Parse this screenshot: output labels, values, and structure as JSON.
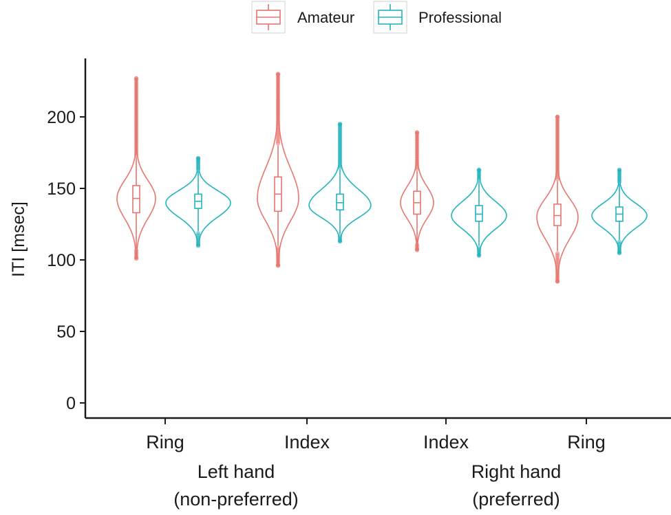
{
  "chart_data": {
    "type": "violin",
    "ylabel": "ITI [msec]",
    "ylim": [
      0,
      235
    ],
    "yticks": [
      0,
      50,
      100,
      150,
      200
    ],
    "categories": [
      "Ring",
      "Index",
      "Index",
      "Ring"
    ],
    "groups": [
      {
        "label_line1": "Left hand",
        "label_line2": "(non-preferred)",
        "categories": [
          0,
          1
        ]
      },
      {
        "label_line1": "Right hand",
        "label_line2": "(preferred)",
        "categories": [
          2,
          3
        ]
      }
    ],
    "legend": {
      "position": "top",
      "entries": [
        "Amateur",
        "Professional"
      ]
    },
    "series": [
      {
        "name": "Amateur",
        "color": "#E8756E",
        "values": [
          {
            "min": 101,
            "q1": 133,
            "median": 143,
            "q3": 152,
            "max": 227,
            "mode": 143,
            "whisker_lo": 108,
            "whisker_hi": 172
          },
          {
            "min": 96,
            "q1": 134,
            "median": 146,
            "q3": 158,
            "max": 230,
            "mode": 143,
            "whisker_lo": 110,
            "whisker_hi": 180
          },
          {
            "min": 107,
            "q1": 132,
            "median": 140,
            "q3": 148,
            "max": 189,
            "mode": 140,
            "whisker_lo": 112,
            "whisker_hi": 162
          },
          {
            "min": 85,
            "q1": 124,
            "median": 131,
            "q3": 139,
            "max": 200,
            "mode": 130,
            "whisker_lo": 106,
            "whisker_hi": 155
          }
        ]
      },
      {
        "name": "Professional",
        "color": "#22B4BE",
        "values": [
          {
            "min": 110,
            "q1": 136,
            "median": 141,
            "q3": 146,
            "max": 171,
            "mode": 140,
            "whisker_lo": 120,
            "whisker_hi": 162
          },
          {
            "min": 113,
            "q1": 135,
            "median": 140,
            "q3": 146,
            "max": 195,
            "mode": 138,
            "whisker_lo": 118,
            "whisker_hi": 163
          },
          {
            "min": 103,
            "q1": 127,
            "median": 132,
            "q3": 138,
            "max": 163,
            "mode": 131,
            "whisker_lo": 110,
            "whisker_hi": 155
          },
          {
            "min": 105,
            "q1": 127,
            "median": 132,
            "q3": 137,
            "max": 163,
            "mode": 131,
            "whisker_lo": 114,
            "whisker_hi": 153
          }
        ]
      }
    ]
  }
}
